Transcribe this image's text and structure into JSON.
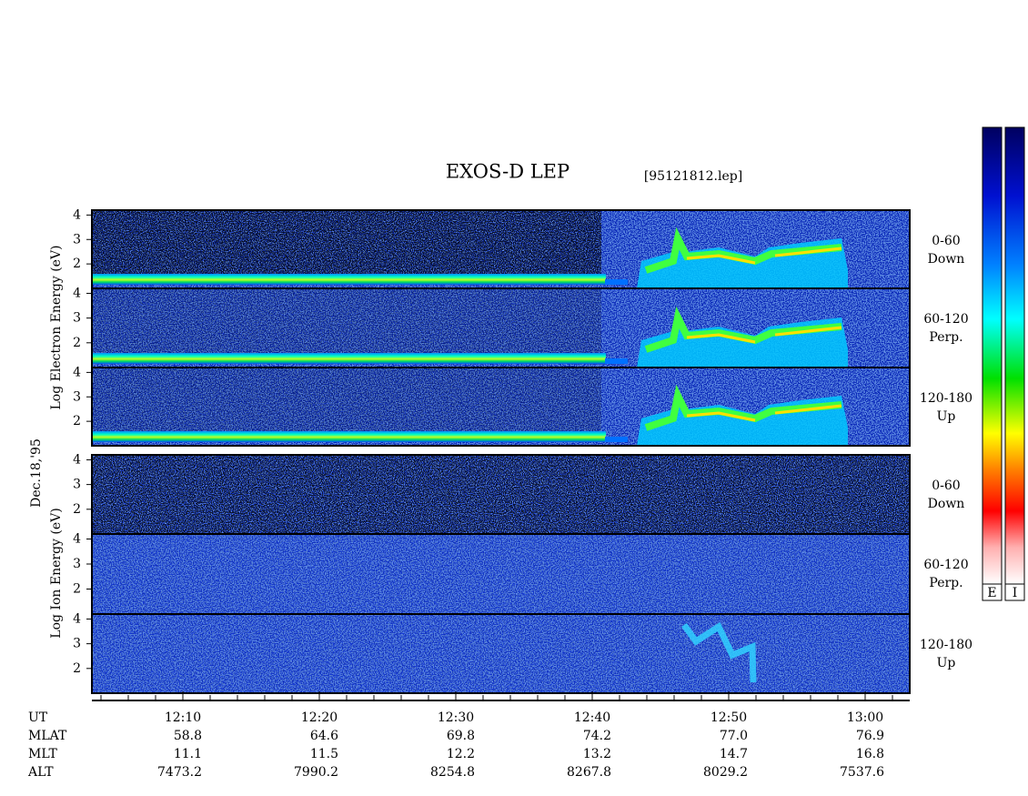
{
  "header": {
    "title": "EXOS-D LEP",
    "file": "[95121812.lep]"
  },
  "groups": [
    {
      "label": "Log   Electron   Energy (eV)"
    },
    {
      "label": "Log   Ion   Energy (eV)"
    }
  ],
  "date": "Dec.18,'95",
  "panels": [
    {
      "lines": [
        "0-60",
        "Down"
      ],
      "ylim": [
        1,
        4.2
      ],
      "yticks": [
        2,
        3,
        4
      ]
    },
    {
      "lines": [
        "60-120",
        "Perp."
      ],
      "ylim": [
        1,
        4.2
      ],
      "yticks": [
        2,
        3,
        4
      ]
    },
    {
      "lines": [
        "120-180",
        "Up"
      ],
      "ylim": [
        1,
        4.2
      ],
      "yticks": [
        2,
        3,
        4
      ]
    },
    {
      "lines": [
        "0-60",
        "Down"
      ],
      "ylim": [
        1,
        4.2
      ],
      "yticks": [
        2,
        3,
        4
      ]
    },
    {
      "lines": [
        "60-120",
        "Perp."
      ],
      "ylim": [
        1,
        4.2
      ],
      "yticks": [
        2,
        3,
        4
      ]
    },
    {
      "lines": [
        "120-180",
        "Up"
      ],
      "ylim": [
        1,
        4.2
      ],
      "yticks": [
        2,
        3,
        4
      ]
    }
  ],
  "time_axis": [
    {
      "name": "UT",
      "values": [
        "12:10",
        "12:20",
        "12:30",
        "12:40",
        "12:50",
        "13:00"
      ]
    },
    {
      "name": "MLAT",
      "values": [
        "58.8",
        "64.6",
        "69.8",
        "74.2",
        "77.0",
        "76.9"
      ]
    },
    {
      "name": "MLT",
      "values": [
        "11.1",
        "11.5",
        "12.2",
        "13.2",
        "14.7",
        "16.8"
      ]
    },
    {
      "name": "ALT",
      "values": [
        "7473.2",
        "7990.2",
        "8254.8",
        "8267.8",
        "8029.2",
        "7537.6"
      ]
    }
  ],
  "colorbars": [
    "E",
    "I"
  ]
}
